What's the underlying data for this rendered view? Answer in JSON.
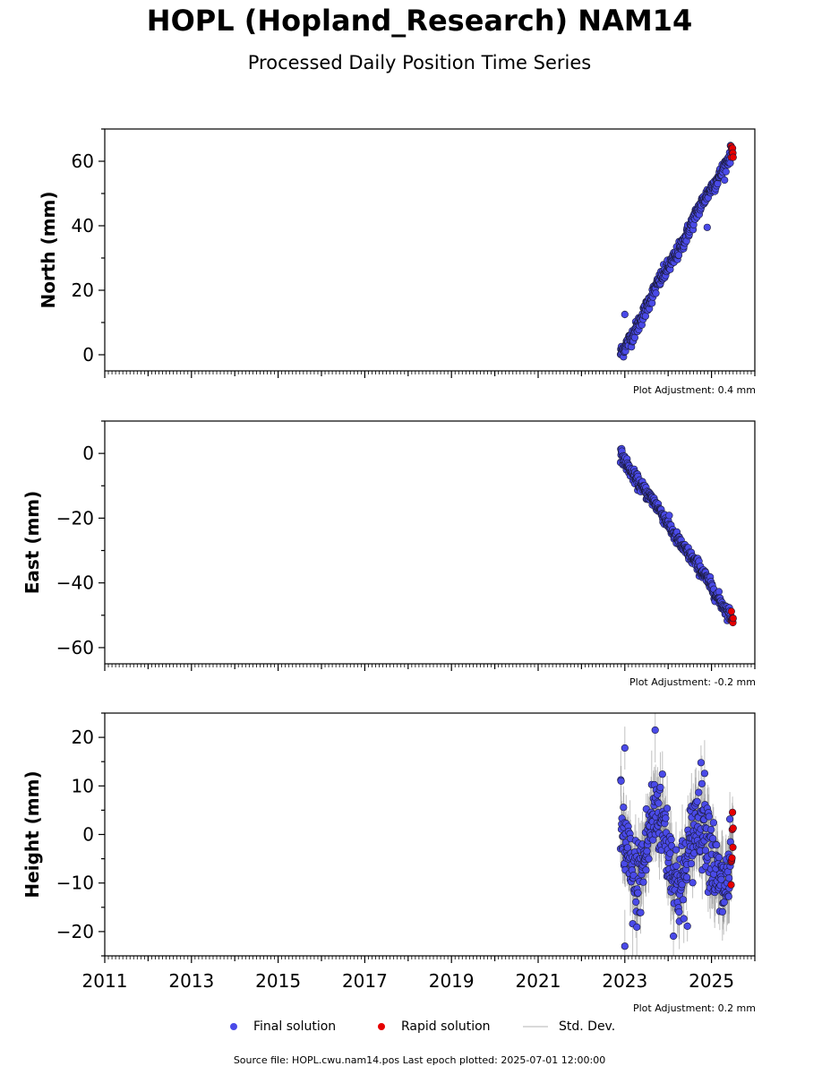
{
  "header": {
    "title": "HOPL (Hopland_Research) NAM14",
    "subtitle": "Processed Daily Position Time Series"
  },
  "chart_data": {
    "type": "scatter",
    "xlim": [
      2011,
      2026
    ],
    "x_ticks": [
      "2011",
      "2013",
      "2015",
      "2017",
      "2019",
      "2021",
      "2023",
      "2025"
    ],
    "panels": [
      {
        "id": "north",
        "ylabel": "North (mm)",
        "ylim": [
          -5,
          70
        ],
        "y_ticks": [
          "0",
          "20",
          "40",
          "60"
        ],
        "adjustment": "Plot Adjustment: 0.4 mm",
        "trend": {
          "start": 2022.9,
          "end": 2025.5,
          "y_start": 0,
          "y_end": 64,
          "scatter": 1.2,
          "seasonal": 0.8,
          "std": 1.0
        },
        "outliers": [
          {
            "x": 2023.0,
            "y": 12.5
          },
          {
            "x": 2024.9,
            "y": 39.5
          }
        ]
      },
      {
        "id": "east",
        "ylabel": "East (mm)",
        "ylim": [
          -65,
          10
        ],
        "y_ticks": [
          "0",
          "−20",
          "−40",
          "−60"
        ],
        "adjustment": "Plot Adjustment: -0.2 mm",
        "trend": {
          "start": 2022.9,
          "end": 2025.5,
          "y_start": -0.5,
          "y_end": -51,
          "scatter": 1.0,
          "seasonal": 0.6,
          "std": 1.0
        },
        "outliers": []
      },
      {
        "id": "height",
        "ylabel": "Height (mm)",
        "ylim": [
          -25,
          25
        ],
        "y_ticks": [
          "20",
          "10",
          "0",
          "−10",
          "−20"
        ],
        "adjustment": "Plot Adjustment: 0.2 mm",
        "trend": {
          "start": 2022.9,
          "end": 2025.5,
          "y_start": -2,
          "y_end": -4,
          "scatter": 4.5,
          "seasonal": 7.5,
          "std": 5.0
        },
        "outliers": [
          {
            "x": 2023.0,
            "y": -23
          },
          {
            "x": 2023.7,
            "y": 21.5
          },
          {
            "x": 2023.0,
            "y": 17.8
          }
        ]
      }
    ],
    "series": [
      {
        "name": "Final solution",
        "color": "#4a4ae8"
      },
      {
        "name": "Rapid solution",
        "color": "#e60000"
      },
      {
        "name": "Std. Dev.",
        "color": "#d9d9d9"
      }
    ],
    "rapid_range": [
      2025.45,
      2025.5
    ]
  },
  "footer": {
    "source": "Source file: HOPL.cwu.nam14.pos  Last epoch plotted: 2025-07-01 12:00:00"
  }
}
